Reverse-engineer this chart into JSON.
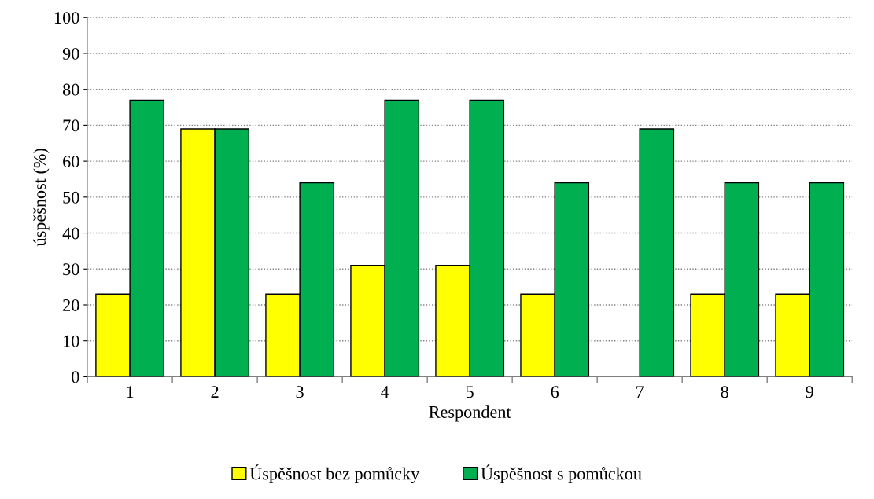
{
  "chart_data": {
    "type": "bar",
    "xlabel": "Respondent",
    "ylabel": "úspěšnost (%)",
    "categories": [
      "1",
      "2",
      "3",
      "4",
      "5",
      "6",
      "7",
      "8",
      "9"
    ],
    "series": [
      {
        "name": "Úspěšnost bez pomůcky",
        "color": "#ffff00",
        "values": [
          23,
          69,
          23,
          31,
          31,
          23,
          null,
          23,
          23
        ]
      },
      {
        "name": "Úspěšnost s pomůckou",
        "color": "#00b050",
        "values": [
          77,
          69,
          54,
          77,
          77,
          54,
          69,
          54,
          54
        ]
      }
    ],
    "ylim": [
      0,
      100
    ],
    "yticks": [
      0,
      10,
      20,
      30,
      40,
      50,
      60,
      70,
      80,
      90,
      100
    ],
    "grid": "y",
    "legend": "bottom"
  }
}
